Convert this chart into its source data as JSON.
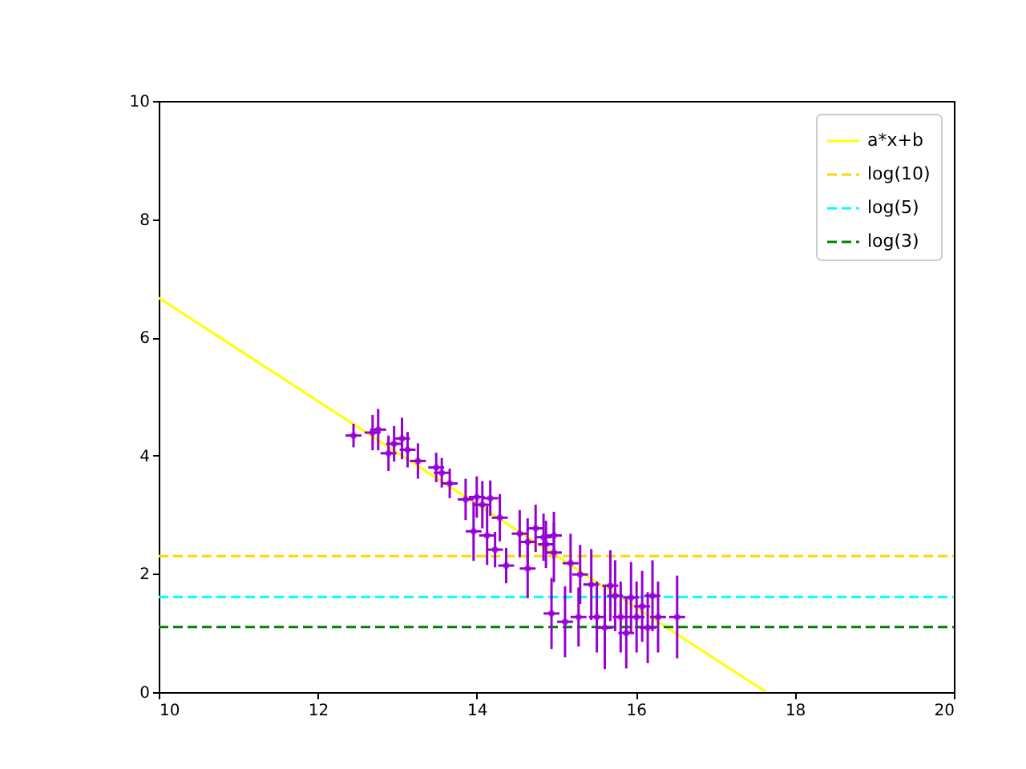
{
  "chart_data": {
    "type": "scatter",
    "xlim": [
      10,
      20
    ],
    "ylim": [
      0,
      10
    ],
    "xticks": [
      10,
      12,
      14,
      16,
      18,
      20
    ],
    "yticks": [
      0,
      2,
      4,
      6,
      8,
      10
    ],
    "grid": false,
    "legend": "top right",
    "series": [
      {
        "type": "line",
        "name": "a*x+b",
        "color": "#ffff00",
        "line_style": "solid",
        "x": [
          10,
          17.64
        ],
        "values": [
          6.67,
          0
        ]
      },
      {
        "type": "line",
        "name": "log(10)",
        "color": "#ffd700",
        "line_style": "dashed",
        "x": [
          10,
          20
        ],
        "values": [
          2.3,
          2.3
        ]
      },
      {
        "type": "line",
        "name": "log(5)",
        "color": "#00ffff",
        "line_style": "dashed",
        "x": [
          10,
          20
        ],
        "values": [
          1.61,
          1.61
        ]
      },
      {
        "type": "line",
        "name": "log(3)",
        "color": "#008000",
        "line_style": "dashed",
        "x": [
          10,
          20
        ],
        "values": [
          1.1,
          1.1
        ]
      },
      {
        "color": "#9400d3",
        "x": [
          12.45,
          12.69,
          12.76,
          12.89,
          12.96,
          13.06,
          13.13,
          13.26,
          13.49,
          13.56,
          13.66,
          13.86,
          13.96,
          14.0,
          14.07,
          14.13,
          14.17,
          14.23,
          14.29,
          14.37,
          14.54,
          14.64,
          14.64,
          14.74,
          14.84,
          14.87,
          14.94,
          14.97,
          14.97,
          15.11,
          15.18,
          15.28,
          15.3,
          15.44,
          15.51,
          15.61,
          15.68,
          15.74,
          15.81,
          15.88,
          15.94,
          16.01,
          16.08,
          16.15,
          16.21,
          16.28,
          16.52
        ],
        "values": [
          4.34,
          4.39,
          4.44,
          4.04,
          4.2,
          4.29,
          4.1,
          3.91,
          3.8,
          3.71,
          3.53,
          3.26,
          2.72,
          3.3,
          3.17,
          2.65,
          3.28,
          2.41,
          2.95,
          2.14,
          2.68,
          2.54,
          2.09,
          2.77,
          2.62,
          2.5,
          1.33,
          2.65,
          2.36,
          1.19,
          2.18,
          1.27,
          1.99,
          1.82,
          1.27,
          1.09,
          1.8,
          1.63,
          1.27,
          1.0,
          1.6,
          1.27,
          1.45,
          1.09,
          1.63,
          1.27,
          1.27
        ],
        "errors": [
          0.2,
          0.3,
          0.35,
          0.3,
          0.3,
          0.35,
          0.3,
          0.3,
          0.25,
          0.25,
          0.25,
          0.35,
          0.5,
          0.35,
          0.4,
          0.5,
          0.3,
          0.3,
          0.4,
          0.3,
          0.4,
          0.4,
          0.5,
          0.4,
          0.4,
          0.4,
          0.6,
          0.4,
          0.5,
          0.6,
          0.5,
          0.5,
          0.5,
          0.6,
          0.6,
          0.7,
          0.6,
          0.6,
          0.6,
          0.6,
          0.6,
          0.6,
          0.6,
          0.6,
          0.6,
          0.6,
          0.7
        ],
        "xerrors": [
          0.1,
          0.1,
          0.1,
          0.1,
          0.1,
          0.1,
          0.1,
          0.1,
          0.1,
          0.1,
          0.1,
          0.1,
          0.1,
          0.1,
          0.1,
          0.1,
          0.1,
          0.1,
          0.1,
          0.1,
          0.1,
          0.1,
          0.1,
          0.1,
          0.1,
          0.1,
          0.1,
          0.1,
          0.1,
          0.1,
          0.1,
          0.1,
          0.1,
          0.1,
          0.1,
          0.1,
          0.1,
          0.1,
          0.1,
          0.1,
          0.1,
          0.1,
          0.1,
          0.1,
          0.1,
          0.1,
          0.1
        ]
      }
    ]
  }
}
